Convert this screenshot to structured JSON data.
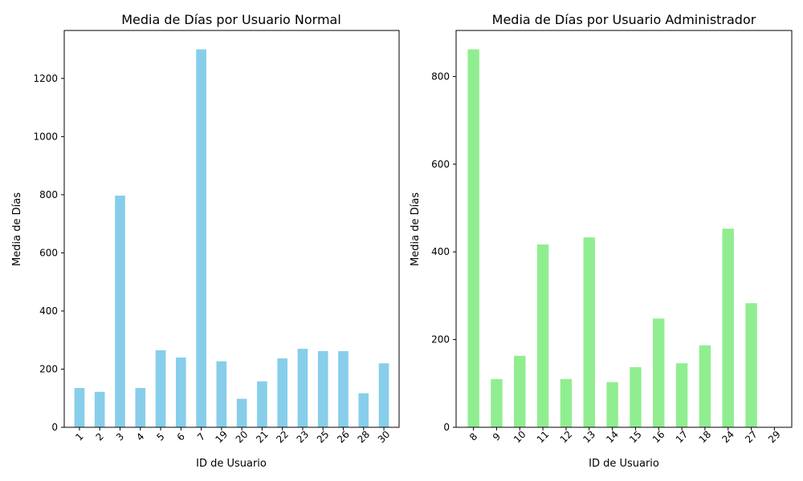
{
  "chart_data": [
    {
      "type": "bar",
      "title": "Media de Días por Usuario Normal",
      "xlabel": "ID de Usuario",
      "ylabel": "Media de Días",
      "categories": [
        "1",
        "2",
        "3",
        "4",
        "5",
        "6",
        "7",
        "19",
        "20",
        "21",
        "22",
        "23",
        "25",
        "26",
        "28",
        "30"
      ],
      "values": [
        135,
        122,
        797,
        135,
        265,
        240,
        1300,
        227,
        98,
        158,
        237,
        270,
        262,
        262,
        117,
        220
      ],
      "ylim": [
        0,
        1365
      ],
      "yticks": [
        0,
        200,
        400,
        600,
        800,
        1000,
        1200
      ],
      "color": "#87ceeb",
      "grid": false
    },
    {
      "type": "bar",
      "title": "Media de Días por Usuario Administrador",
      "xlabel": "ID de Usuario",
      "ylabel": "Media de Días",
      "categories": [
        "8",
        "9",
        "10",
        "11",
        "12",
        "13",
        "14",
        "15",
        "16",
        "17",
        "18",
        "24",
        "27",
        "29"
      ],
      "values": [
        862,
        110,
        163,
        417,
        110,
        433,
        103,
        137,
        248,
        146,
        187,
        453,
        283,
        0
      ],
      "ylim": [
        0,
        905
      ],
      "yticks": [
        0,
        200,
        400,
        600,
        800
      ],
      "color": "#90ee90",
      "grid": false
    }
  ]
}
